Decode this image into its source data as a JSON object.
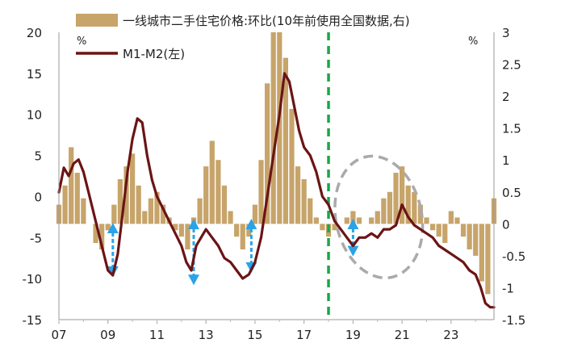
{
  "chart_data": {
    "type": "bar+line",
    "unit_left": "%",
    "unit_right": "%",
    "legend": [
      {
        "name": "一线城市二手住宅价格:环比(10年前使用全国数据,右)",
        "kind": "bar",
        "color": "#c7a46a"
      },
      {
        "name": "M1-M2(左)",
        "kind": "line",
        "color": "#6b1414"
      }
    ],
    "left_axis": {
      "min": -15,
      "max": 20,
      "ticks": [
        "20",
        "15",
        "10",
        "5",
        "0",
        "-5",
        "-10",
        "-15"
      ]
    },
    "right_axis": {
      "min": -1.5,
      "max": 3,
      "ticks": [
        "3",
        "2.5",
        "2",
        "1.5",
        "1",
        "0.5",
        "0",
        "-0.5",
        "-1",
        "-1.5"
      ]
    },
    "x_axis": {
      "start": 2007.0,
      "end": 2024.75,
      "ticks": [
        "07",
        "09",
        "11",
        "13",
        "15",
        "17",
        "19",
        "21",
        "23"
      ]
    },
    "series": [
      {
        "name": "一线城市二手住宅价格:环比(10年前使用全国数据,右)",
        "axis": "right",
        "x": [
          2007.0,
          2007.25,
          2007.5,
          2007.75,
          2008.0,
          2008.25,
          2008.5,
          2008.75,
          2009.0,
          2009.25,
          2009.5,
          2009.75,
          2010.0,
          2010.25,
          2010.5,
          2010.75,
          2011.0,
          2011.25,
          2011.5,
          2011.75,
          2012.0,
          2012.25,
          2012.5,
          2012.75,
          2013.0,
          2013.25,
          2013.5,
          2013.75,
          2014.0,
          2014.25,
          2014.5,
          2014.75,
          2015.0,
          2015.25,
          2015.5,
          2015.75,
          2016.0,
          2016.25,
          2016.5,
          2016.75,
          2017.0,
          2017.25,
          2017.5,
          2017.75,
          2018.0,
          2018.25,
          2018.5,
          2018.75,
          2019.0,
          2019.25,
          2019.5,
          2019.75,
          2020.0,
          2020.25,
          2020.5,
          2020.75,
          2021.0,
          2021.25,
          2021.5,
          2021.75,
          2022.0,
          2022.25,
          2022.5,
          2022.75,
          2023.0,
          2023.25,
          2023.5,
          2023.75,
          2024.0,
          2024.25,
          2024.5,
          2024.75
        ],
        "values": [
          0.3,
          0.6,
          1.2,
          0.8,
          0.4,
          0.0,
          -0.3,
          -0.4,
          -0.1,
          0.3,
          0.7,
          0.9,
          1.1,
          0.6,
          0.2,
          0.4,
          0.5,
          0.3,
          0.1,
          -0.1,
          -0.2,
          -0.4,
          0.1,
          0.4,
          0.9,
          1.3,
          1.0,
          0.6,
          0.2,
          -0.2,
          -0.4,
          -0.2,
          0.3,
          1.0,
          2.2,
          3.0,
          3.0,
          2.6,
          1.8,
          0.9,
          0.7,
          0.4,
          0.1,
          -0.1,
          -0.2,
          -0.1,
          0.0,
          0.1,
          0.2,
          0.1,
          0.0,
          0.1,
          0.2,
          0.4,
          0.5,
          0.8,
          0.9,
          0.6,
          0.5,
          0.3,
          0.1,
          -0.1,
          -0.2,
          -0.3,
          0.2,
          0.1,
          -0.2,
          -0.4,
          -0.5,
          -0.9,
          -1.1,
          0.4
        ]
      },
      {
        "name": "M1-M2(左)",
        "axis": "left",
        "x": [
          2007.0,
          2007.2,
          2007.4,
          2007.6,
          2007.8,
          2008.0,
          2008.25,
          2008.5,
          2008.75,
          2009.0,
          2009.2,
          2009.4,
          2009.6,
          2009.8,
          2010.0,
          2010.2,
          2010.4,
          2010.6,
          2010.8,
          2011.0,
          2011.25,
          2011.5,
          2011.75,
          2012.0,
          2012.2,
          2012.4,
          2012.6,
          2012.8,
          2013.0,
          2013.25,
          2013.5,
          2013.75,
          2014.0,
          2014.25,
          2014.5,
          2014.75,
          2015.0,
          2015.25,
          2015.5,
          2015.75,
          2016.0,
          2016.2,
          2016.4,
          2016.6,
          2016.8,
          2017.0,
          2017.25,
          2017.5,
          2017.75,
          2018.0,
          2018.25,
          2018.5,
          2018.75,
          2019.0,
          2019.25,
          2019.5,
          2019.75,
          2020.0,
          2020.25,
          2020.5,
          2020.75,
          2021.0,
          2021.25,
          2021.5,
          2021.75,
          2022.0,
          2022.25,
          2022.5,
          2022.75,
          2023.0,
          2023.25,
          2023.5,
          2023.75,
          2024.0,
          2024.2,
          2024.4,
          2024.6,
          2024.75
        ],
        "values": [
          0.5,
          3.5,
          2.5,
          4.0,
          4.5,
          3.0,
          0.0,
          -3.0,
          -6.0,
          -9.0,
          -9.6,
          -7.0,
          -2.0,
          3.0,
          7.0,
          9.5,
          9.0,
          5.0,
          2.0,
          0.0,
          -1.5,
          -3.0,
          -4.5,
          -6.0,
          -8.0,
          -9.0,
          -6.0,
          -5.0,
          -4.0,
          -5.0,
          -6.0,
          -7.5,
          -8.0,
          -9.0,
          -10.0,
          -9.5,
          -8.0,
          -5.0,
          0.0,
          5.0,
          10.0,
          15.0,
          14.0,
          11.0,
          8.0,
          6.0,
          5.0,
          3.0,
          0.0,
          -1.0,
          -3.0,
          -4.0,
          -5.0,
          -6.0,
          -5.0,
          -5.0,
          -4.5,
          -5.0,
          -4.0,
          -4.0,
          -3.5,
          -1.0,
          -2.5,
          -3.5,
          -4.0,
          -4.5,
          -5.0,
          -6.0,
          -6.5,
          -7.0,
          -7.5,
          -8.0,
          -9.0,
          -9.5,
          -11.0,
          -13.0,
          -13.5,
          -13.5
        ]
      }
    ],
    "annotations": [
      {
        "type": "vertical-dashed-line",
        "x": 2018.0,
        "color": "#1aa64a"
      },
      {
        "type": "dashed-ellipse",
        "x_range": [
          2018.3,
          2021.8
        ],
        "left_y_range": [
          -10,
          5
        ],
        "color": "#aaaaaa"
      },
      {
        "type": "double-arrow",
        "x": 2009.2,
        "left_y_range": [
          -9.5,
          -3.5
        ],
        "color": "#2aa3e8"
      },
      {
        "type": "double-arrow",
        "x": 2012.5,
        "left_y_range": [
          -10.5,
          -3.0
        ],
        "color": "#2aa3e8"
      },
      {
        "type": "double-arrow",
        "x": 2014.85,
        "left_y_range": [
          -9.0,
          -3.0
        ],
        "color": "#2aa3e8"
      },
      {
        "type": "double-arrow",
        "x": 2019.0,
        "left_y_range": [
          -7.0,
          -3.0
        ],
        "color": "#2aa3e8"
      }
    ]
  }
}
